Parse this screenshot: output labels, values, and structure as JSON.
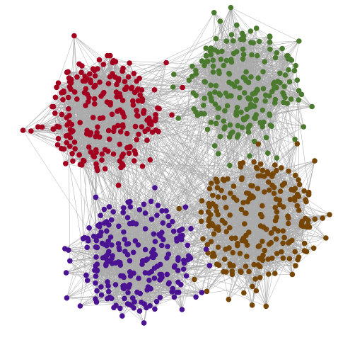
{
  "clusters": [
    {
      "color": "#a3001f"
    },
    {
      "color": "#4b7a2f"
    },
    {
      "color": "#754605"
    },
    {
      "color": "#4a1392"
    }
  ],
  "edge_color": "#aaaaaa"
}
